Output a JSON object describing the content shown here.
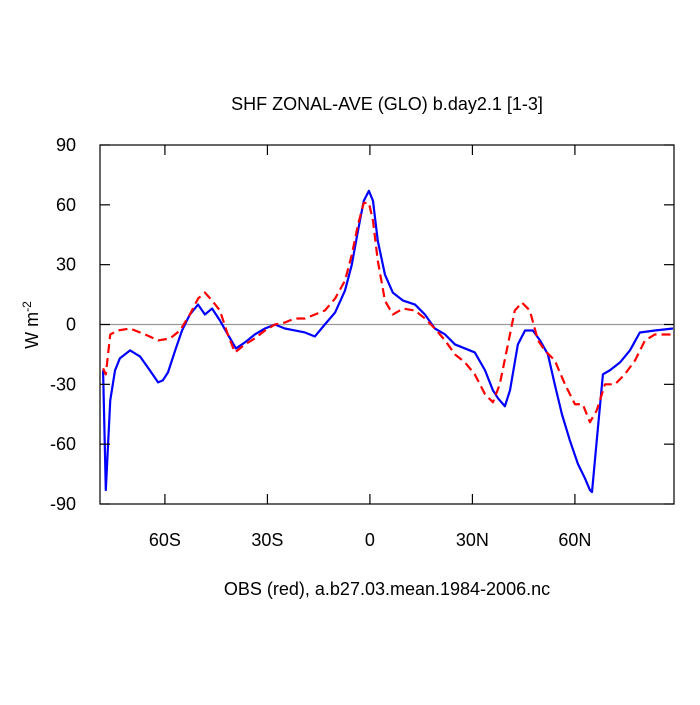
{
  "chart_data": {
    "type": "line",
    "title": "SHF ZONAL-AVE (GLO) b.day2.1 [1-3]",
    "xlabel": "OBS (red), a.b27.03.mean.1984-2006.nc",
    "ylabel": "W m",
    "ylabel_superscript": "-2",
    "xlim": [
      -79,
      89
    ],
    "ylim": [
      -90,
      90
    ],
    "xticks": [
      {
        "value": -60,
        "label": "60S"
      },
      {
        "value": -30,
        "label": "30S"
      },
      0,
      {
        "value": 30,
        "label": "30N"
      },
      {
        "value": 60,
        "label": "60N"
      }
    ],
    "yticks": [
      90,
      60,
      30,
      0,
      -30,
      -60,
      -90
    ],
    "reference_line": 0,
    "series": [
      {
        "color": "#0000ff",
        "dash": "solid",
        "x": [
          -78.1,
          -77.3,
          -76,
          -74.6,
          -73.2,
          -70.2,
          -67.3,
          -64.4,
          -62,
          -60.6,
          -59.1,
          -57,
          -55,
          -52.7,
          -50.3,
          -48.3,
          -46.2,
          -43.9,
          -41.6,
          -39.2,
          -36.6,
          -33.7,
          -30.7,
          -27.8,
          -24.9,
          -22,
          -19,
          -16.1,
          -13.2,
          -10.2,
          -7.3,
          -5.3,
          -3.5,
          -1.8,
          -0.3,
          0.9,
          2.3,
          4.4,
          6.7,
          9.7,
          13.2,
          16.1,
          19,
          22,
          24.9,
          27.8,
          30.7,
          33.7,
          36,
          37.5,
          39.5,
          41,
          43.3,
          45.4,
          47.7,
          49.8,
          52.1,
          54.1,
          56.2,
          58.5,
          60.9,
          62.9,
          64.4,
          65,
          66.4,
          68.2,
          70.2,
          73.2,
          76.1,
          79,
          83.4,
          88.7
        ],
        "values": [
          -23,
          -83,
          -38,
          -23,
          -17,
          -13,
          -16,
          -23,
          -29,
          -28,
          -24,
          -13,
          -3,
          5,
          10,
          5,
          8,
          2,
          -5,
          -12,
          -9,
          -5,
          -2,
          0,
          -2,
          -3,
          -4,
          -6,
          0,
          6,
          17,
          30,
          47,
          62,
          67,
          62,
          42,
          25,
          16,
          12,
          10,
          5,
          -2,
          -5,
          -10,
          -12,
          -14,
          -23,
          -33,
          -37,
          -41,
          -33,
          -10,
          -3,
          -3,
          -8,
          -15,
          -30,
          -45,
          -58,
          -70,
          -77,
          -83,
          -84,
          -58,
          -25,
          -23,
          -19,
          -13,
          -4,
          -3,
          -2
        ]
      },
      {
        "color": "#ff0000",
        "dash": "dashed",
        "x": [
          -78.1,
          -77.3,
          -76,
          -73.8,
          -70.2,
          -65.8,
          -62,
          -58.5,
          -55.6,
          -52.7,
          -50.3,
          -48.3,
          -46.2,
          -43.9,
          -41.6,
          -39.5,
          -36.6,
          -33.7,
          -30.7,
          -27.8,
          -24.9,
          -22,
          -19,
          -16.1,
          -13.2,
          -10.2,
          -7.3,
          -5.3,
          -3.5,
          -1.8,
          -0.3,
          0.9,
          2.3,
          4.4,
          6.7,
          9.7,
          13.2,
          16.1,
          19,
          22,
          24.9,
          27.8,
          30.7,
          33.7,
          36,
          38,
          40.4,
          42.4,
          44.5,
          46.8,
          49.2,
          51.2,
          54.1,
          57.1,
          60,
          62.3,
          64.4,
          66.4,
          68.8,
          71.7,
          74.6,
          77.6,
          80.5,
          83.4,
          88.4
        ],
        "values": [
          -22,
          -25,
          -5,
          -3,
          -2,
          -5,
          -8,
          -7,
          -3,
          5,
          13,
          16,
          12,
          7,
          -5,
          -14,
          -10,
          -7,
          -3,
          0,
          1,
          3,
          3,
          5,
          7,
          13,
          22,
          35,
          50,
          61,
          61,
          52,
          32,
          12,
          5,
          8,
          7,
          3,
          -2,
          -8,
          -15,
          -19,
          -25,
          -35,
          -39,
          -30,
          -10,
          7,
          11,
          7,
          -8,
          -13,
          -18,
          -30,
          -40,
          -40,
          -49,
          -43,
          -30,
          -30,
          -25,
          -18,
          -8,
          -5,
          -5
        ]
      }
    ]
  }
}
